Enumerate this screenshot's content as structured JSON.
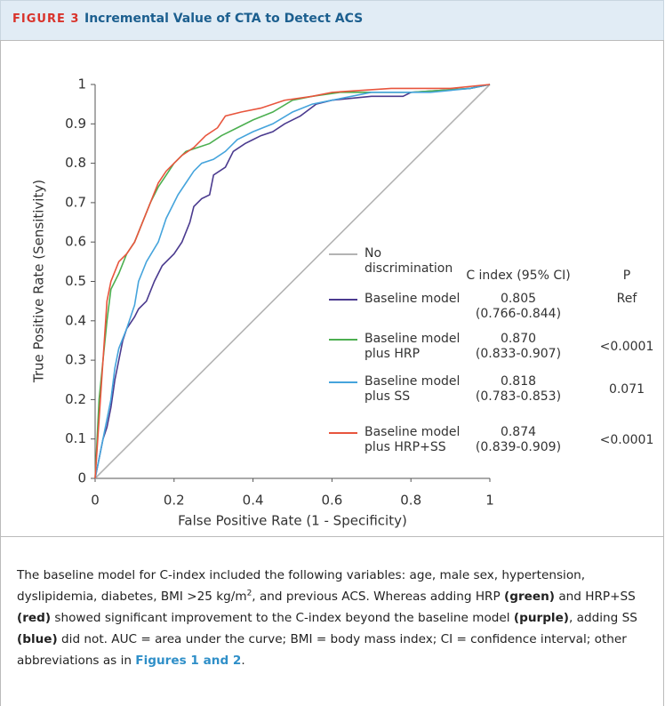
{
  "header": {
    "label": "FIGURE 3",
    "title": "Incremental Value of CTA to Detect ACS"
  },
  "chart_data": {
    "type": "line",
    "xlabel": "False Positive Rate (1 - Specificity)",
    "ylabel": "True Positive Rate (Sensitivity)",
    "xlim": [
      0,
      1
    ],
    "ylim": [
      0,
      1
    ],
    "xticks": [
      0,
      0.2,
      0.4,
      0.6,
      0.8,
      1
    ],
    "yticks": [
      0,
      0.1,
      0.2,
      0.3,
      0.4,
      0.5,
      0.6,
      0.7,
      0.8,
      0.9,
      1
    ],
    "legend_columns": [
      "C index (95% CI)",
      "P"
    ],
    "series": [
      {
        "name": "No discrimination",
        "color": "#b3b3b3",
        "x": [
          0,
          1
        ],
        "values": [
          0,
          1
        ]
      },
      {
        "name": "Baseline model",
        "color": "#4b3b8f",
        "c_index": "0.805",
        "ci": "(0.766-0.844)",
        "p": "Ref",
        "x": [
          0,
          0.01,
          0.02,
          0.03,
          0.04,
          0.05,
          0.06,
          0.07,
          0.08,
          0.1,
          0.11,
          0.13,
          0.15,
          0.17,
          0.2,
          0.22,
          0.24,
          0.25,
          0.27,
          0.29,
          0.3,
          0.33,
          0.35,
          0.38,
          0.4,
          0.42,
          0.45,
          0.48,
          0.52,
          0.56,
          0.6,
          0.7,
          0.78,
          0.8,
          0.95,
          1
        ],
        "values": [
          0,
          0.05,
          0.1,
          0.13,
          0.18,
          0.25,
          0.3,
          0.35,
          0.38,
          0.41,
          0.43,
          0.45,
          0.5,
          0.54,
          0.57,
          0.6,
          0.65,
          0.69,
          0.71,
          0.72,
          0.77,
          0.79,
          0.83,
          0.85,
          0.86,
          0.87,
          0.88,
          0.9,
          0.92,
          0.95,
          0.96,
          0.97,
          0.97,
          0.98,
          0.99,
          1
        ]
      },
      {
        "name": "Baseline model plus HRP",
        "color": "#4caf50",
        "c_index": "0.870",
        "ci": "(0.833-0.907)",
        "p": "<0.0001",
        "x": [
          0,
          0.01,
          0.02,
          0.03,
          0.04,
          0.06,
          0.08,
          0.1,
          0.12,
          0.14,
          0.16,
          0.18,
          0.2,
          0.23,
          0.26,
          0.29,
          0.32,
          0.36,
          0.4,
          0.45,
          0.5,
          0.55,
          0.62,
          0.8,
          0.95,
          1
        ],
        "values": [
          0,
          0.2,
          0.3,
          0.4,
          0.48,
          0.52,
          0.57,
          0.6,
          0.65,
          0.7,
          0.74,
          0.77,
          0.8,
          0.83,
          0.84,
          0.85,
          0.87,
          0.89,
          0.91,
          0.93,
          0.96,
          0.97,
          0.98,
          0.98,
          0.99,
          1
        ]
      },
      {
        "name": "Baseline model plus SS",
        "color": "#45a4dc",
        "c_index": "0.818",
        "ci": "(0.783-0.853)",
        "p": "0.071",
        "x": [
          0,
          0.01,
          0.02,
          0.03,
          0.04,
          0.05,
          0.06,
          0.08,
          0.1,
          0.11,
          0.13,
          0.16,
          0.18,
          0.21,
          0.23,
          0.25,
          0.27,
          0.3,
          0.33,
          0.36,
          0.4,
          0.45,
          0.5,
          0.55,
          0.6,
          0.7,
          0.85,
          0.95,
          1
        ],
        "values": [
          0,
          0.05,
          0.1,
          0.15,
          0.2,
          0.28,
          0.33,
          0.38,
          0.44,
          0.5,
          0.55,
          0.6,
          0.66,
          0.72,
          0.75,
          0.78,
          0.8,
          0.81,
          0.83,
          0.86,
          0.88,
          0.9,
          0.93,
          0.95,
          0.96,
          0.98,
          0.98,
          0.99,
          1
        ]
      },
      {
        "name": "Baseline model plus HRP+SS",
        "color": "#e8553d",
        "c_index": "0.874",
        "ci": "(0.839-0.909)",
        "p": "<0.0001",
        "x": [
          0,
          0.01,
          0.02,
          0.03,
          0.04,
          0.06,
          0.08,
          0.1,
          0.12,
          0.14,
          0.16,
          0.18,
          0.2,
          0.22,
          0.25,
          0.28,
          0.31,
          0.33,
          0.37,
          0.42,
          0.48,
          0.55,
          0.6,
          0.75,
          0.9,
          1
        ],
        "values": [
          0,
          0.15,
          0.3,
          0.45,
          0.5,
          0.55,
          0.57,
          0.6,
          0.65,
          0.7,
          0.75,
          0.78,
          0.8,
          0.82,
          0.84,
          0.87,
          0.89,
          0.92,
          0.93,
          0.94,
          0.96,
          0.97,
          0.98,
          0.99,
          0.99,
          1
        ]
      }
    ]
  },
  "caption": [
    {
      "text": "The baseline model for C-index included the following variables: age, male sex, hypertension, dyslipidemia, diabetes, BMI >25 kg/m"
    },
    {
      "text": "2",
      "style": "sup"
    },
    {
      "text": ", and previous ACS. Whereas adding HRP "
    },
    {
      "text": "(green)",
      "style": "bold"
    },
    {
      "text": " and HRP+SS "
    },
    {
      "text": "(red)",
      "style": "bold"
    },
    {
      "text": " showed significant improvement to the C-index beyond the baseline model "
    },
    {
      "text": "(purple)",
      "style": "bold"
    },
    {
      "text": ", adding SS "
    },
    {
      "text": "(blue)",
      "style": "bold"
    },
    {
      "text": " did not. AUC = area under the curve; BMI = body mass index; CI = confidence interval; other abbreviations as in "
    },
    {
      "text": "Figures 1 and 2",
      "style": "link"
    },
    {
      "text": "."
    }
  ]
}
